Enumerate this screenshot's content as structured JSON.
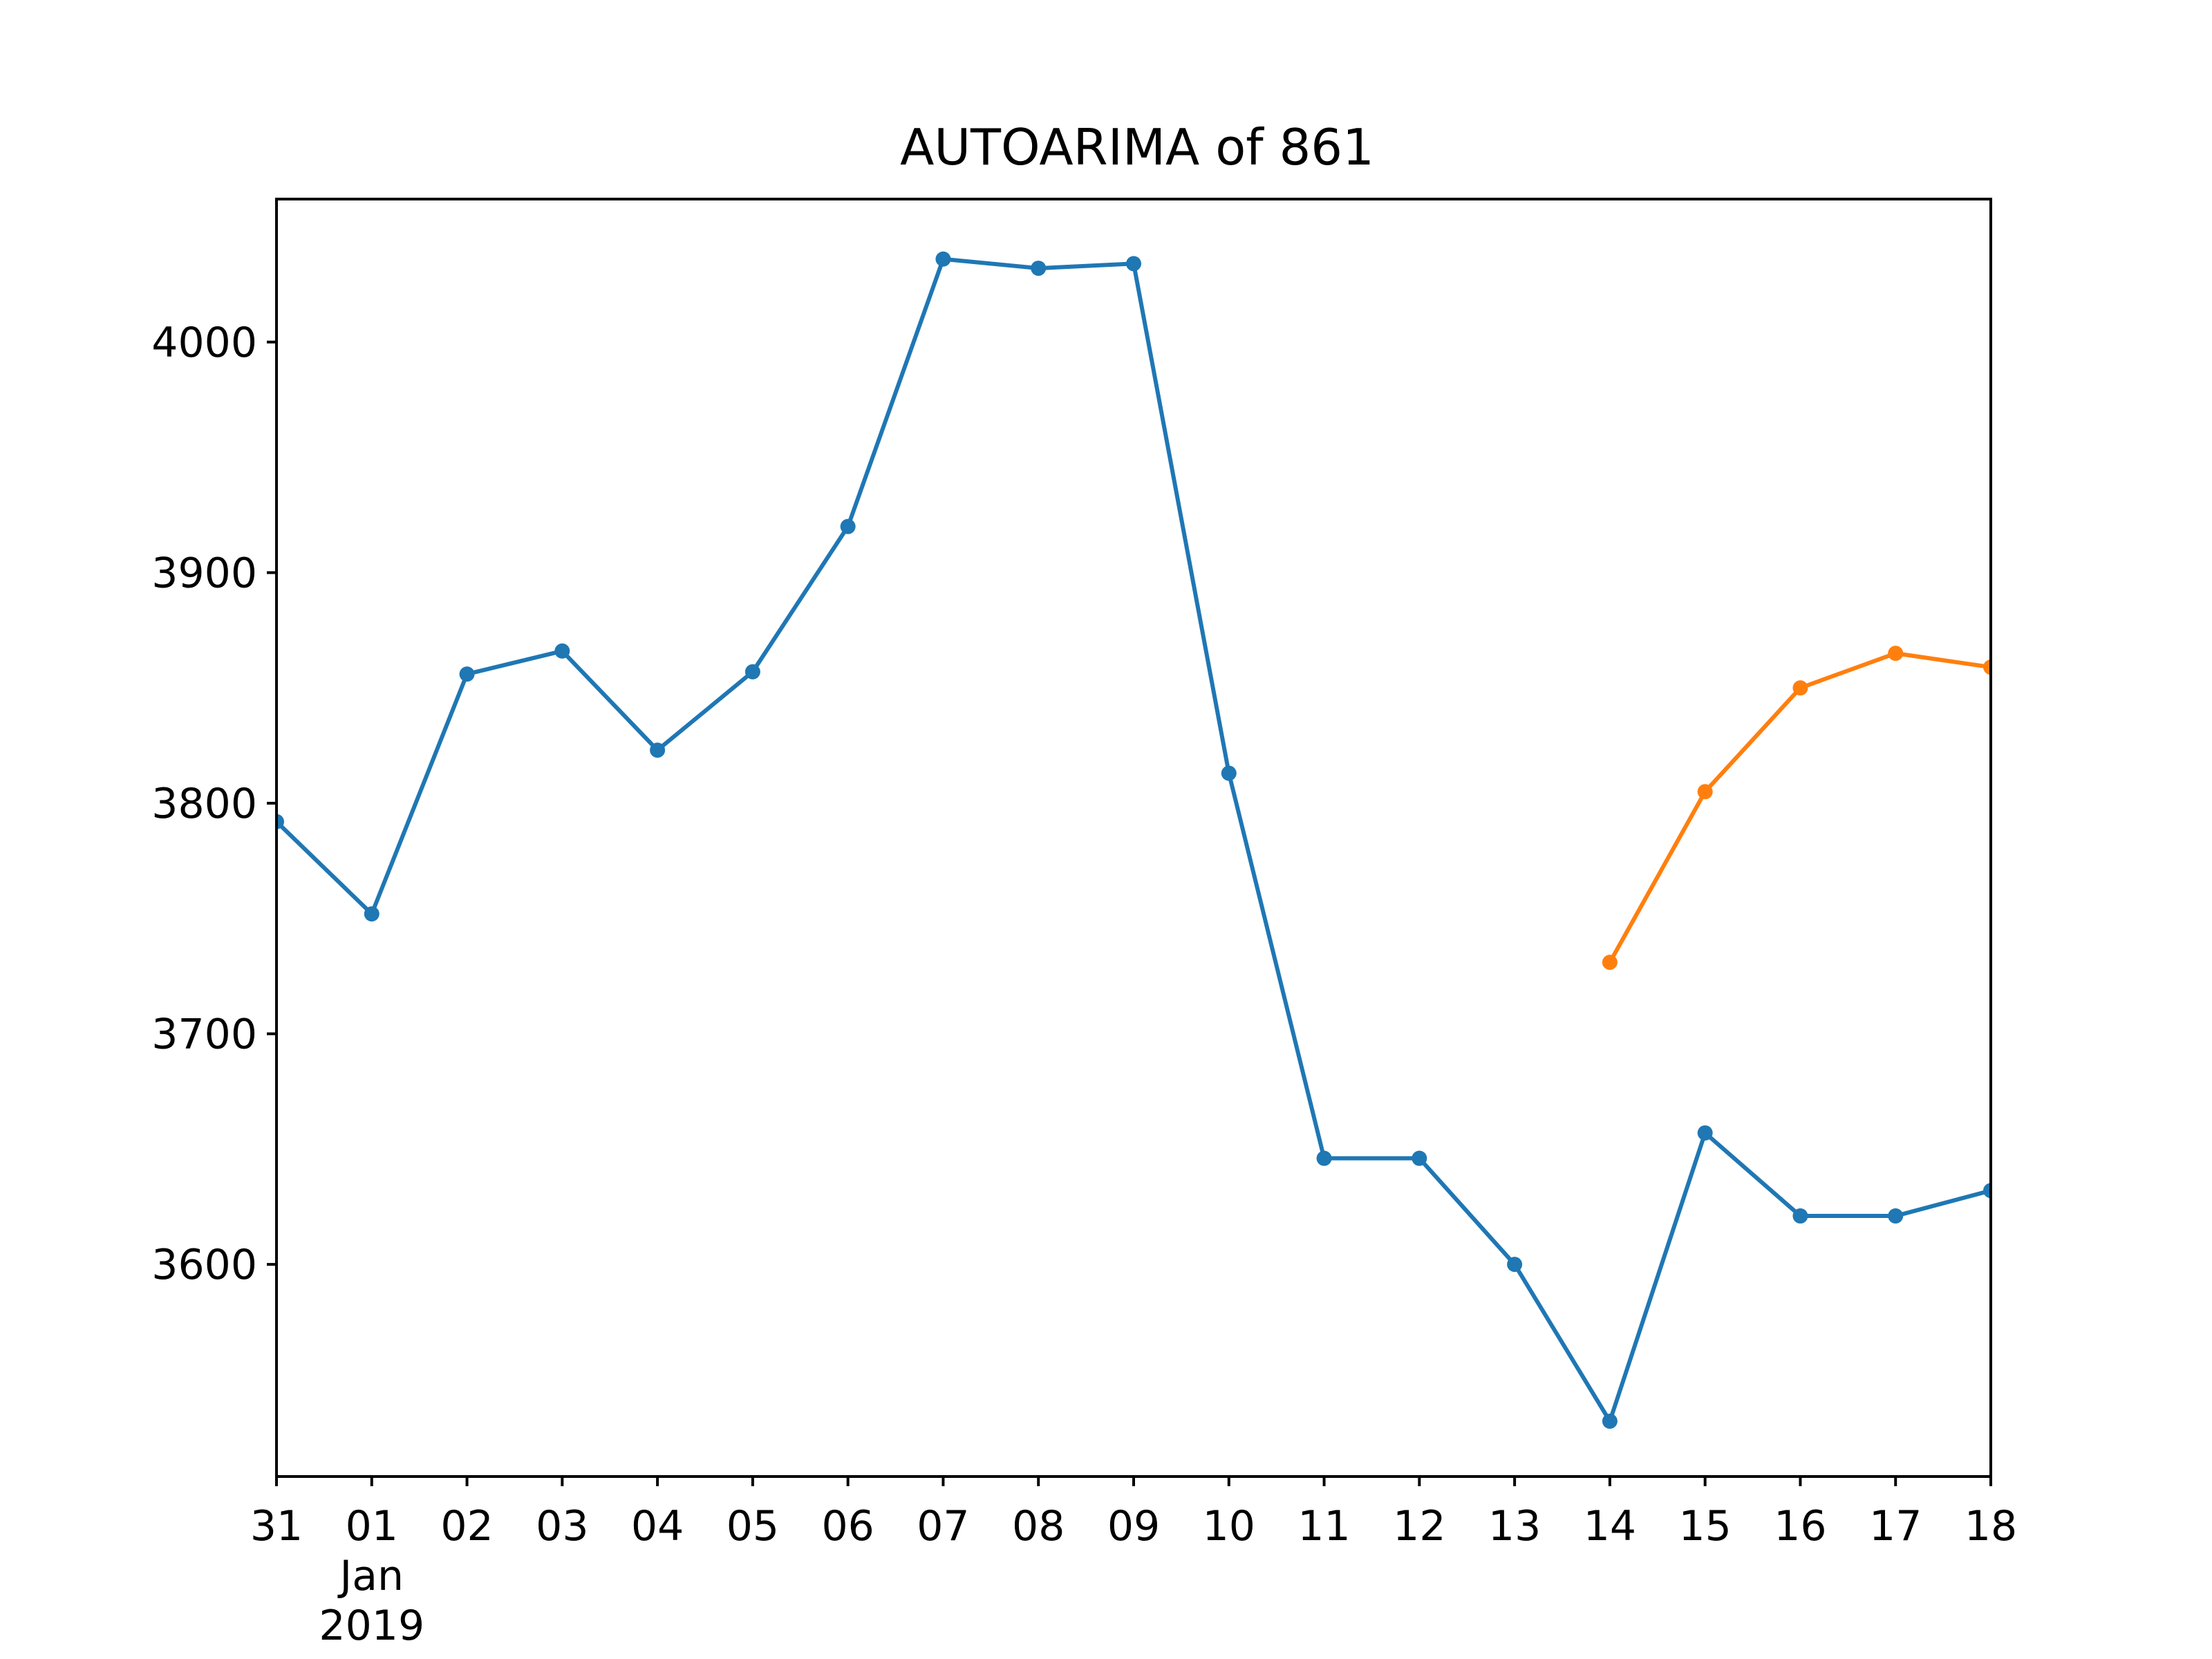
{
  "chart_data": {
    "type": "line",
    "title": "AUTOARIMA of 861",
    "xlabel": "",
    "ylabel": "",
    "x": [
      "2018-12-31",
      "2019-01-01",
      "2019-01-02",
      "2019-01-03",
      "2019-01-04",
      "2019-01-05",
      "2019-01-06",
      "2019-01-07",
      "2019-01-08",
      "2019-01-09",
      "2019-01-10",
      "2019-01-11",
      "2019-01-12",
      "2019-01-13",
      "2019-01-14",
      "2019-01-15",
      "2019-01-16",
      "2019-01-17",
      "2019-01-18"
    ],
    "x_tick_labels": [
      {
        "day": "31"
      },
      {
        "day": "01",
        "month": "Jan",
        "year": "2019"
      },
      {
        "day": "02"
      },
      {
        "day": "03"
      },
      {
        "day": "04"
      },
      {
        "day": "05"
      },
      {
        "day": "06"
      },
      {
        "day": "07"
      },
      {
        "day": "08"
      },
      {
        "day": "09"
      },
      {
        "day": "10"
      },
      {
        "day": "11"
      },
      {
        "day": "12"
      },
      {
        "day": "13"
      },
      {
        "day": "14"
      },
      {
        "day": "15"
      },
      {
        "day": "16"
      },
      {
        "day": "17"
      },
      {
        "day": "18"
      }
    ],
    "y_ticks": [
      3600,
      3700,
      3800,
      3900,
      4000
    ],
    "y_tick_labels": [
      "3600",
      "3700",
      "3800",
      "3900",
      "4000"
    ],
    "ylim": [
      3508,
      4062
    ],
    "grid": false,
    "series": [
      {
        "color": "#1f77b4",
        "x": [
          "2018-12-31",
          "2019-01-01",
          "2019-01-02",
          "2019-01-03",
          "2019-01-04",
          "2019-01-05",
          "2019-01-06",
          "2019-01-07",
          "2019-01-08",
          "2019-01-09",
          "2019-01-10",
          "2019-01-11",
          "2019-01-12",
          "2019-01-13",
          "2019-01-14",
          "2019-01-15",
          "2019-01-16",
          "2019-01-17",
          "2019-01-18"
        ],
        "values": [
          3792,
          3752,
          3856,
          3866,
          3823,
          3857,
          3920,
          4036,
          4032,
          4034,
          3813,
          3646,
          3646,
          3600,
          3532,
          3657,
          3621,
          3621,
          3632
        ]
      },
      {
        "color": "#ff7f0e",
        "x": [
          "2019-01-14",
          "2019-01-15",
          "2019-01-16",
          "2019-01-17",
          "2019-01-18"
        ],
        "values": [
          3731,
          3805,
          3850,
          3865,
          3859
        ]
      }
    ]
  }
}
